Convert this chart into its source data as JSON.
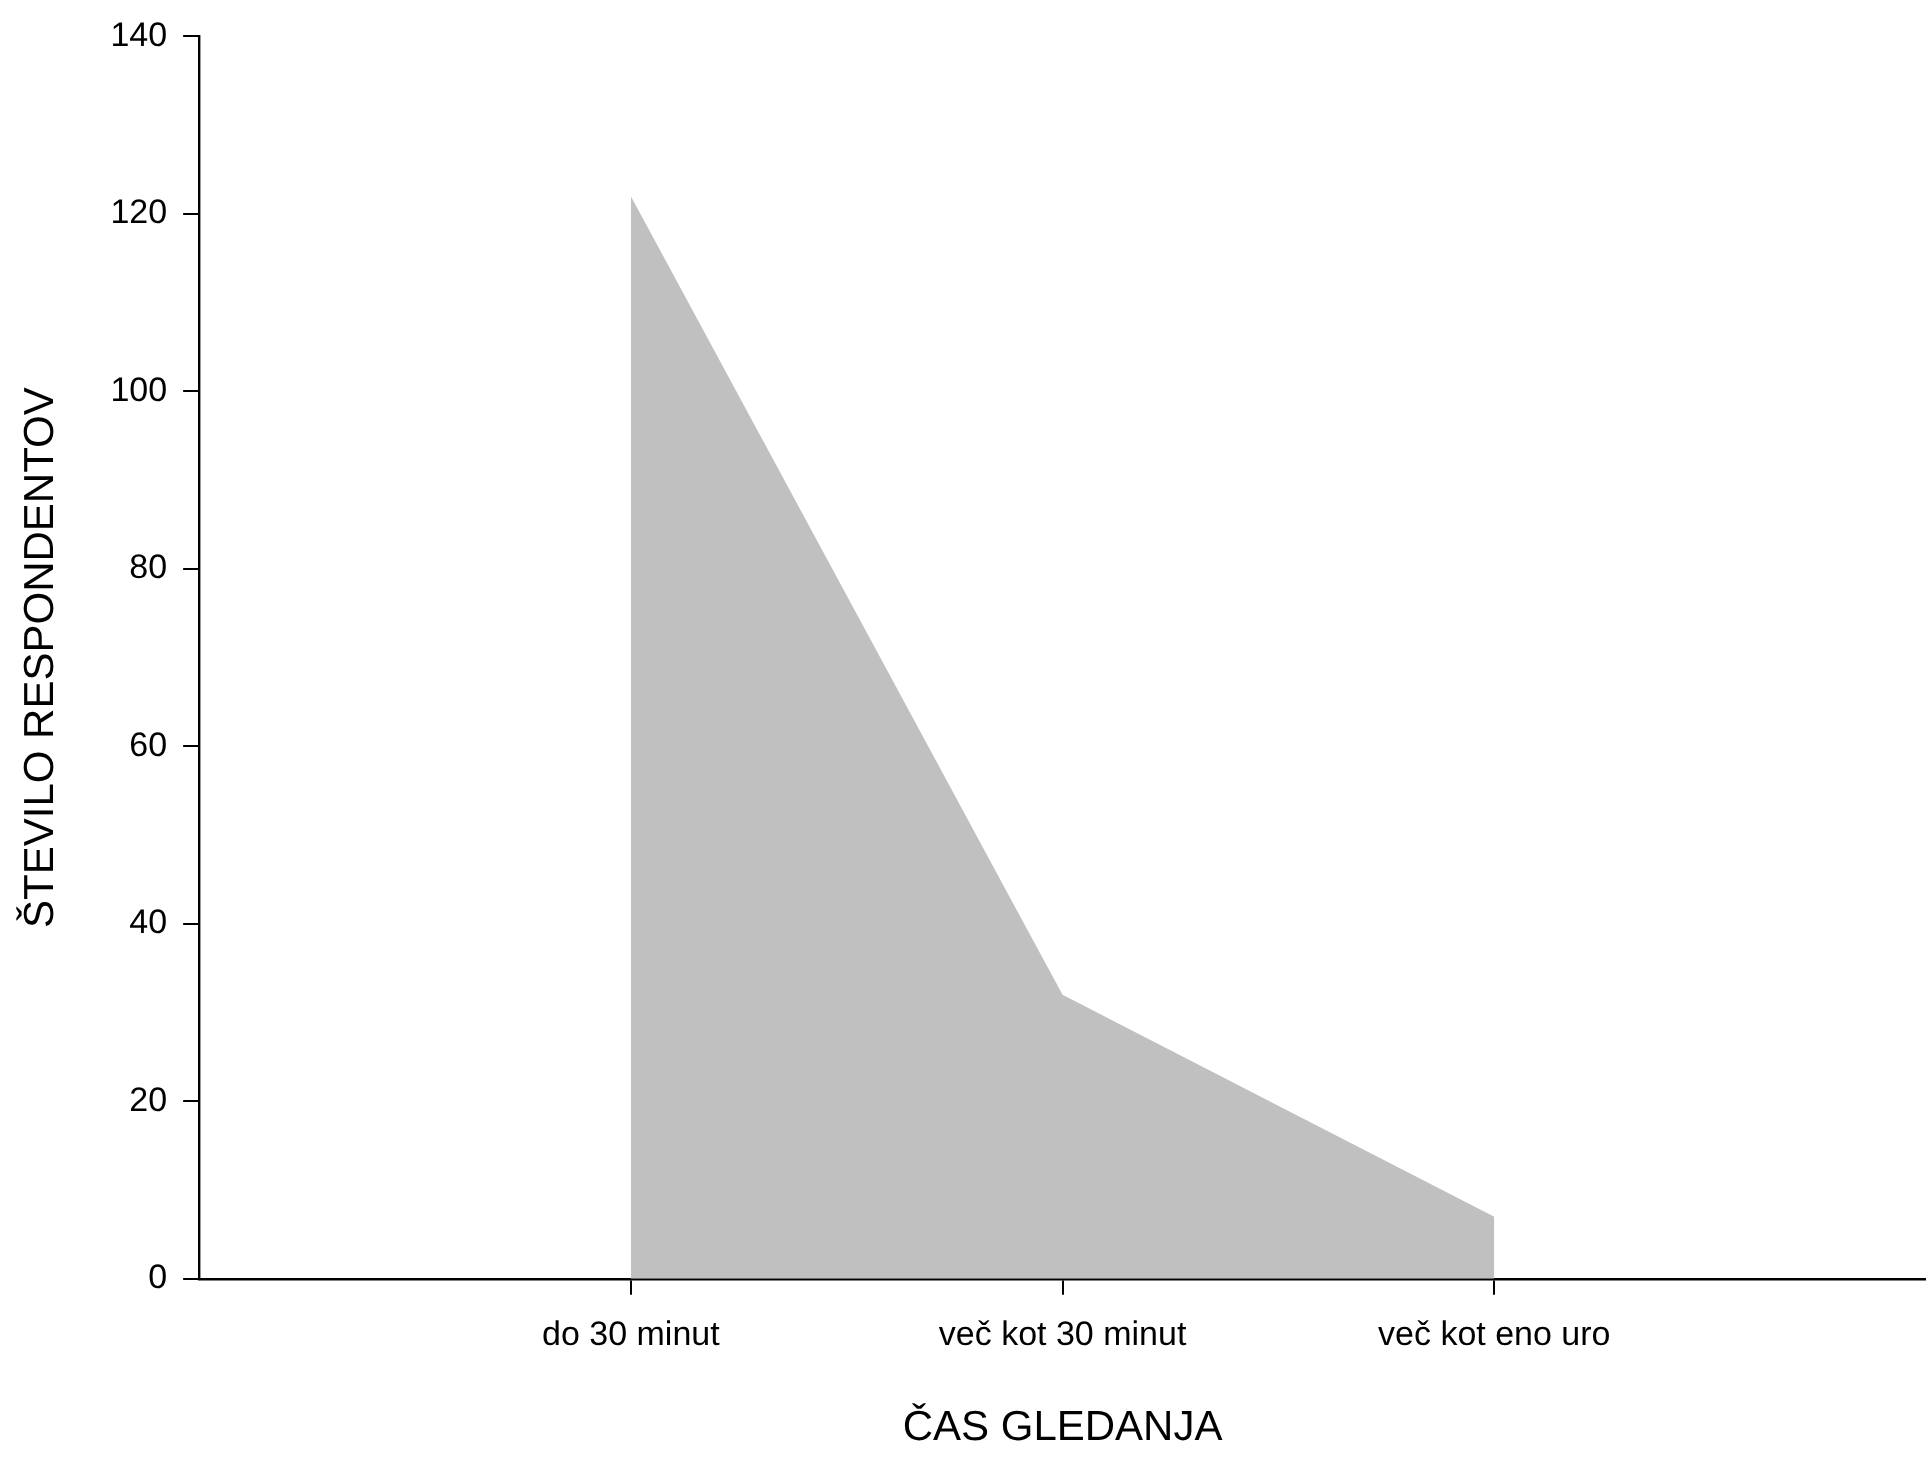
{
  "chart_data": {
    "type": "area",
    "xlabel": "ČAS GLEDANJA",
    "ylabel": "ŠTEVILO RESPONDENTOV",
    "categories": [
      "do 30 minut",
      "več kot 30 minut",
      "več kot eno uro"
    ],
    "values": [
      122,
      32,
      7
    ],
    "color": "#c0c0c0",
    "ylim": [
      0,
      140
    ],
    "yticks": [
      0,
      20,
      40,
      60,
      80,
      100,
      120,
      140
    ],
    "grid": false,
    "legend": false
  }
}
